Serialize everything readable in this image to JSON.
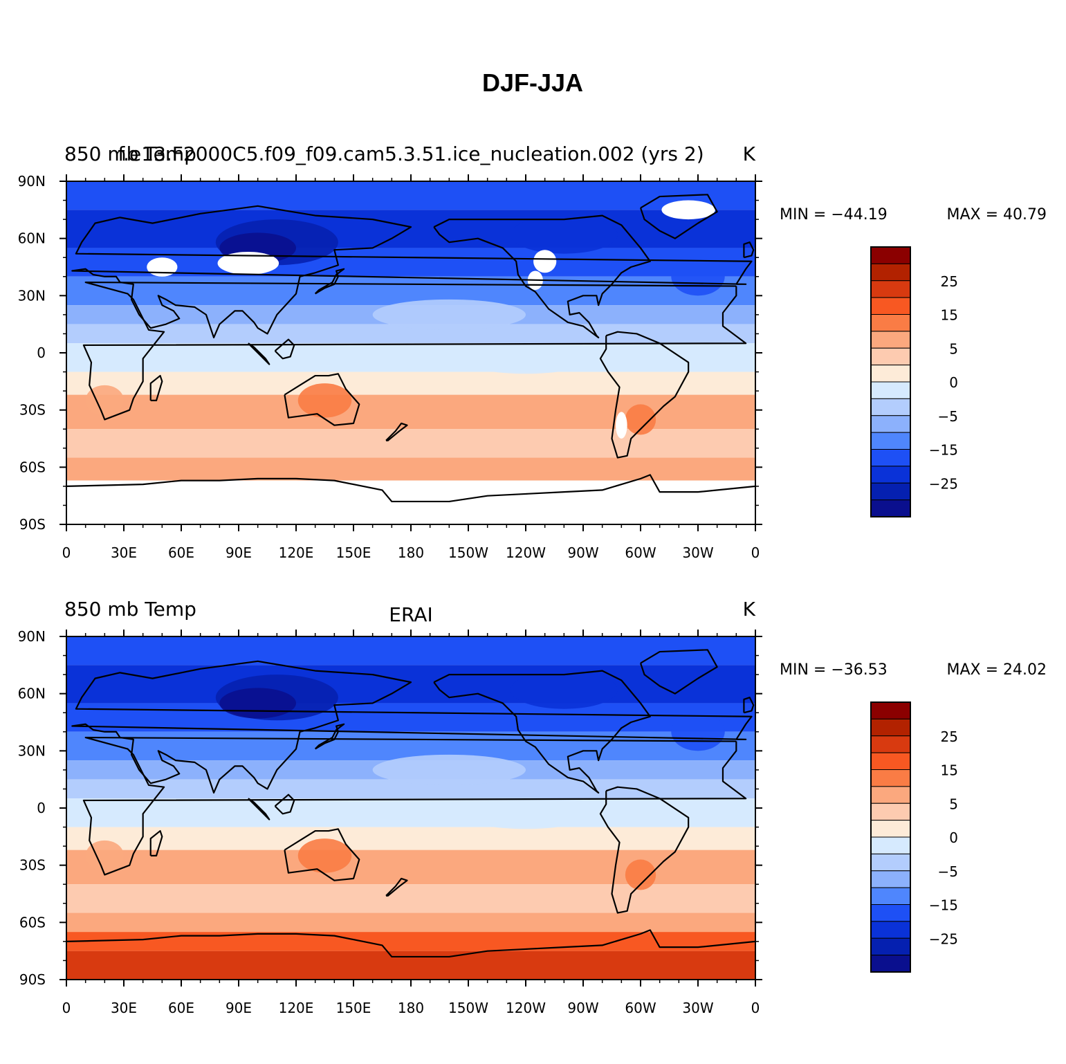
{
  "title": "DJF-JJA",
  "chart_data": [
    {
      "type": "heatmap",
      "left_title": "850 mb Temp",
      "center_title": "f.e13.F2000C5.f09_f09.cam5.3.51.ice_nucleation.002 (yrs 2)",
      "units": "K",
      "min_label": "MIN = −44.19",
      "max_label": "MAX =   40.79",
      "min": -44.19,
      "max": 40.79,
      "xlim": [
        "0",
        "0"
      ],
      "ylim": [
        "90S",
        "90N"
      ],
      "x_ticks": [
        "0",
        "30E",
        "60E",
        "90E",
        "120E",
        "150E",
        "180",
        "150W",
        "120W",
        "90W",
        "60W",
        "30W",
        "0"
      ],
      "y_ticks": [
        "90N",
        "60N",
        "30N",
        "0",
        "30S",
        "60S",
        "90S"
      ],
      "colorbar_labels": [
        "25",
        "15",
        "5",
        "0",
        "−5",
        "−15",
        "−25"
      ],
      "colorbar_colors": [
        "#8b0000",
        "#b22200",
        "#d83a10",
        "#f85822",
        "#fa7c45",
        "#fba87e",
        "#fdcbb0",
        "#fdebd8",
        "#d6eafe",
        "#b3cdfd",
        "#8cb1fc",
        "#4f86fd",
        "#1e50f5",
        "#0a32d8",
        "#0520b0",
        "#0a0f8e"
      ],
      "grid": false,
      "legend": "right",
      "missing_data": "white"
    },
    {
      "type": "heatmap",
      "left_title": "850 mb Temp",
      "center_title": "ERAI",
      "units": "K",
      "min_label": "MIN = −36.53",
      "max_label": "MAX =   24.02",
      "min": -36.53,
      "max": 24.02,
      "xlim": [
        "0",
        "0"
      ],
      "ylim": [
        "90S",
        "90N"
      ],
      "x_ticks": [
        "0",
        "30E",
        "60E",
        "90E",
        "120E",
        "150E",
        "180",
        "150W",
        "120W",
        "90W",
        "60W",
        "30W",
        "0"
      ],
      "y_ticks": [
        "90N",
        "60N",
        "30N",
        "0",
        "30S",
        "60S",
        "90S"
      ],
      "colorbar_labels": [
        "25",
        "15",
        "5",
        "0",
        "−5",
        "−15",
        "−25"
      ],
      "colorbar_colors": [
        "#8b0000",
        "#b22200",
        "#d83a10",
        "#f85822",
        "#fa7c45",
        "#fba87e",
        "#fdcbb0",
        "#fdebd8",
        "#d6eafe",
        "#b3cdfd",
        "#8cb1fc",
        "#4f86fd",
        "#1e50f5",
        "#0a32d8",
        "#0520b0",
        "#0a0f8e"
      ],
      "grid": false,
      "legend": "right"
    }
  ]
}
